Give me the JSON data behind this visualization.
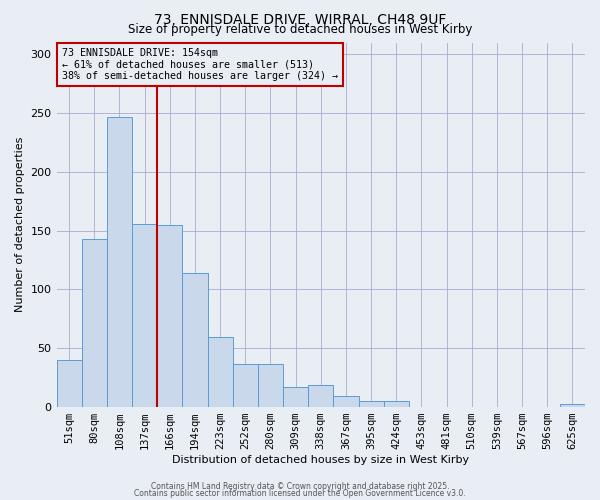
{
  "title": "73, ENNISDALE DRIVE, WIRRAL, CH48 9UF",
  "subtitle": "Size of property relative to detached houses in West Kirby",
  "xlabel": "Distribution of detached houses by size in West Kirby",
  "ylabel": "Number of detached properties",
  "bar_labels": [
    "51sqm",
    "80sqm",
    "108sqm",
    "137sqm",
    "166sqm",
    "194sqm",
    "223sqm",
    "252sqm",
    "280sqm",
    "309sqm",
    "338sqm",
    "367sqm",
    "395sqm",
    "424sqm",
    "453sqm",
    "481sqm",
    "510sqm",
    "539sqm",
    "567sqm",
    "596sqm",
    "625sqm"
  ],
  "bar_values": [
    40,
    143,
    247,
    156,
    155,
    114,
    60,
    37,
    37,
    17,
    19,
    9,
    5,
    5,
    0,
    0,
    0,
    0,
    0,
    0,
    3
  ],
  "bar_color": "#c9d8ea",
  "bar_edge_color": "#5b9bd5",
  "background_color": "#e8eef4",
  "vline_color": "#c00000",
  "annotation_text": "73 ENNISDALE DRIVE: 154sqm\n← 61% of detached houses are smaller (513)\n38% of semi-detached houses are larger (324) →",
  "annotation_box_color": "#c00000",
  "ylim": [
    0,
    310
  ],
  "yticks": [
    0,
    50,
    100,
    150,
    200,
    250,
    300
  ],
  "footnote1": "Contains HM Land Registry data © Crown copyright and database right 2025.",
  "footnote2": "Contains public sector information licensed under the Open Government Licence v3.0."
}
